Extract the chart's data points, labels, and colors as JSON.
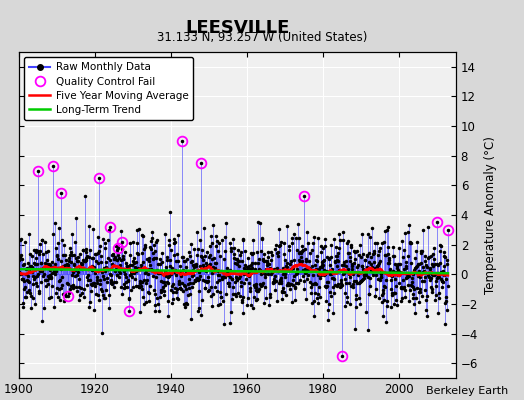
{
  "title": "LEESVILLE",
  "subtitle": "31.133 N, 93.257 W (United States)",
  "credit": "Berkeley Earth",
  "ylabel": "Temperature Anomaly (°C)",
  "xlim": [
    1900,
    2015
  ],
  "ylim": [
    -7,
    15
  ],
  "yticks": [
    -6,
    -4,
    -2,
    0,
    2,
    4,
    6,
    8,
    10,
    12,
    14
  ],
  "xticks": [
    1900,
    1920,
    1940,
    1960,
    1980,
    2000
  ],
  "fig_bg_color": "#d8d8d8",
  "plot_bg_color": "#f0f0f0",
  "grid_color": "#ffffff",
  "raw_line_color": "#4444ff",
  "raw_dot_color": "#000000",
  "qc_fail_color": "#ff00ff",
  "moving_avg_color": "#ff0000",
  "trend_color": "#00cc00",
  "seed": 42
}
